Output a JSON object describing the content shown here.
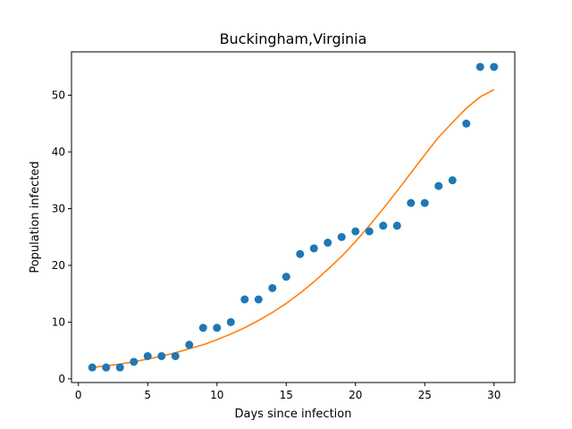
{
  "chart_data": {
    "type": "scatter",
    "title": "Buckingham,Virginia",
    "xlabel": "Days since infection",
    "ylabel": "Population infected",
    "xlim": [
      -0.5,
      31.5
    ],
    "ylim": [
      -0.65,
      57.65
    ],
    "x_ticks": [
      0,
      5,
      10,
      15,
      20,
      25,
      30
    ],
    "y_ticks": [
      0,
      10,
      20,
      30,
      40,
      50
    ],
    "grid": false,
    "colors": {
      "points": "#1f77b4",
      "fit": "#ff7f0e"
    },
    "series": [
      {
        "type": "scatter",
        "x": [
          1,
          2,
          3,
          4,
          5,
          6,
          7,
          8,
          9,
          10,
          11,
          12,
          13,
          14,
          15,
          16,
          17,
          18,
          19,
          20,
          21,
          22,
          23,
          24,
          25,
          26,
          27,
          28,
          29,
          30
        ],
        "y": [
          2,
          2,
          2,
          3,
          4,
          4,
          4,
          6,
          9,
          9,
          10,
          14,
          14,
          16,
          18,
          22,
          23,
          24,
          25,
          26,
          26,
          27,
          27,
          31,
          31,
          34,
          35,
          45,
          55,
          55
        ]
      },
      {
        "type": "line",
        "x": [
          1,
          2,
          3,
          4,
          5,
          6,
          7,
          8,
          9,
          10,
          11,
          12,
          13,
          14,
          15,
          16,
          17,
          18,
          19,
          20,
          21,
          22,
          23,
          24,
          25,
          26,
          27,
          28,
          29,
          30
        ],
        "y": [
          2.0,
          2.3,
          2.6,
          3.0,
          3.5,
          4.0,
          4.6,
          5.3,
          6.0,
          6.9,
          7.9,
          9.0,
          10.3,
          11.7,
          13.3,
          15.1,
          17.1,
          19.3,
          21.6,
          24.2,
          27.0,
          30.0,
          33.1,
          36.3,
          39.5,
          42.6,
          45.2,
          47.7,
          49.7,
          51.0
        ]
      }
    ]
  }
}
